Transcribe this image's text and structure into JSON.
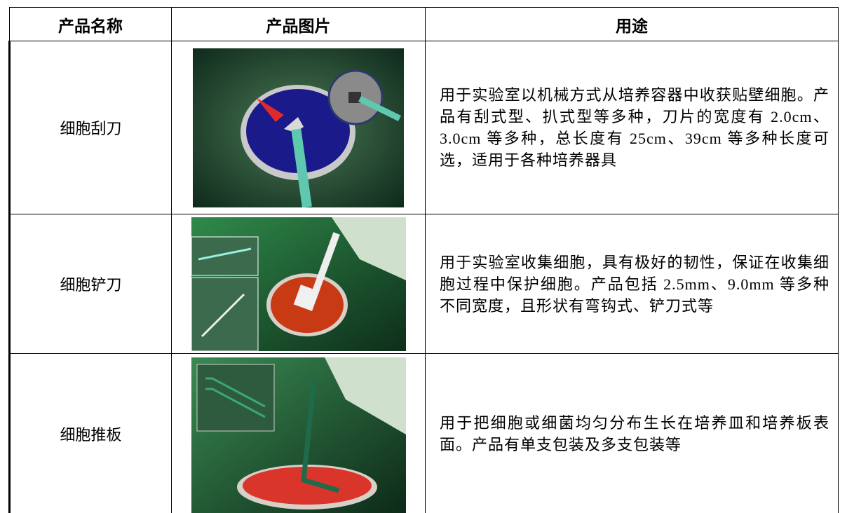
{
  "table": {
    "header": [
      "产品名称",
      "产品图片",
      "用途"
    ],
    "rows": [
      {
        "name": "细胞刮刀",
        "use": "用于实验室以机械方式从培养容器中收获贴壁细胞。产品有刮式型、扒式型等多种，刀片的宽度有 2.0cm、3.0cm 等多种，总长度有 25cm、39cm 等多种长度可选，适用于各种培养器具"
      },
      {
        "name": "细胞铲刀",
        "use": "用于实验室收集细胞，具有极好的韧性，保证在收集细胞过程中保护细胞。产品包括 2.5mm、9.0mm 等多种不同宽度，且形状有弯钩式、铲刀式等"
      },
      {
        "name": "细胞推板",
        "use": "用于把细胞或细菌均匀分布生长在培养皿和培养板表面。产品有单支包装及多支包装等"
      }
    ]
  }
}
